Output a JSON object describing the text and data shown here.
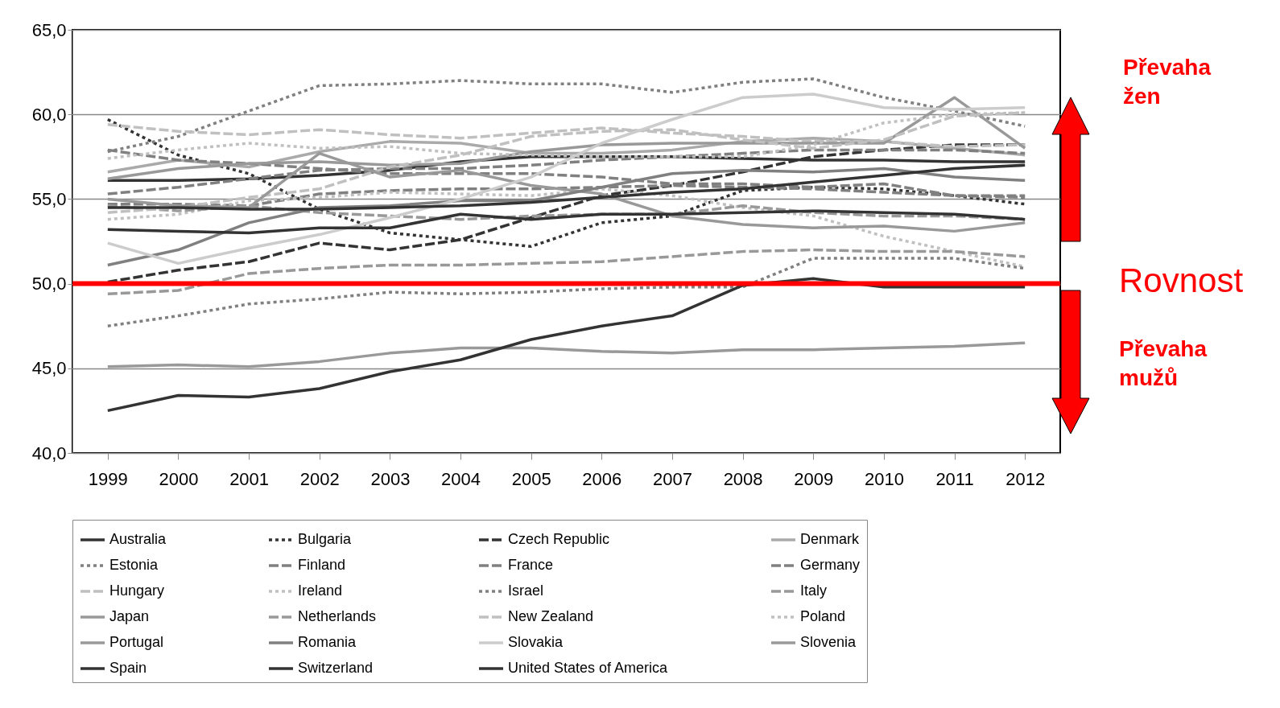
{
  "chart_data": {
    "type": "line",
    "categories": [
      "1999",
      "2000",
      "2001",
      "2002",
      "2003",
      "2004",
      "2005",
      "2006",
      "2007",
      "2008",
      "2009",
      "2010",
      "2011",
      "2012"
    ],
    "series": [
      {
        "name": "Australia",
        "color": "#333333",
        "line_style": "solid",
        "values": [
          56.1,
          56.1,
          56.2,
          56.4,
          56.7,
          57.2,
          57.5,
          57.5,
          57.5,
          57.4,
          57.3,
          57.3,
          57.2,
          57.2
        ]
      },
      {
        "name": "Bulgaria",
        "color": "#333333",
        "line_style": "dotted",
        "values": [
          59.7,
          57.6,
          56.5,
          54.4,
          53.0,
          52.6,
          52.2,
          53.6,
          54.0,
          55.5,
          55.7,
          55.6,
          55.2,
          54.7
        ]
      },
      {
        "name": "Czech Republic",
        "color": "#333333",
        "line_style": "dashed",
        "values": [
          50.1,
          50.8,
          51.3,
          52.4,
          52.0,
          52.6,
          53.9,
          55.2,
          55.8,
          56.6,
          57.5,
          57.9,
          58.2,
          58.2
        ]
      },
      {
        "name": "Denmark",
        "color": "#aaaaaa",
        "line_style": "solid",
        "values": [
          56.6,
          57.3,
          56.9,
          57.8,
          58.4,
          58.3,
          57.7,
          57.7,
          57.9,
          58.4,
          58.6,
          58.4,
          58.0,
          57.6
        ]
      },
      {
        "name": "Estonia",
        "color": "#808080",
        "line_style": "dotted",
        "values": [
          57.8,
          58.7,
          60.2,
          61.7,
          61.8,
          62.0,
          61.8,
          61.8,
          61.3,
          61.9,
          62.1,
          61.0,
          60.2,
          59.3
        ]
      },
      {
        "name": "Finland",
        "color": "#808080",
        "line_style": "dashed",
        "values": [
          55.3,
          55.7,
          56.2,
          56.7,
          56.8,
          56.8,
          57.0,
          57.3,
          57.5,
          57.7,
          57.9,
          57.9,
          57.9,
          57.7
        ]
      },
      {
        "name": "France",
        "color": "#808080",
        "line_style": "dashed",
        "values": [
          54.7,
          54.7,
          54.6,
          55.3,
          55.5,
          55.6,
          55.6,
          55.7,
          55.8,
          55.7,
          55.6,
          55.4,
          55.2,
          55.1
        ]
      },
      {
        "name": "Germany",
        "color": "#808080",
        "line_style": "dashed",
        "values": [
          57.9,
          57.3,
          57.1,
          56.8,
          56.5,
          56.5,
          56.5,
          56.3,
          55.9,
          55.9,
          55.7,
          55.9,
          55.2,
          55.2
        ]
      },
      {
        "name": "Hungary",
        "color": "#c0c0c0",
        "line_style": "dashed",
        "values": [
          59.4,
          59.0,
          58.8,
          59.1,
          58.8,
          58.6,
          58.9,
          59.2,
          58.9,
          58.7,
          58.4,
          58.4,
          58.1,
          58.2
        ]
      },
      {
        "name": "Ireland",
        "color": "#c0c0c0",
        "line_style": "dotted",
        "values": [
          53.8,
          54.1,
          54.9,
          55.1,
          55.4,
          55.3,
          55.2,
          55.6,
          55.2,
          54.5,
          54.0,
          52.8,
          51.9,
          51.0
        ]
      },
      {
        "name": "Israel",
        "color": "#808080",
        "line_style": "dotted",
        "values": [
          47.5,
          48.1,
          48.8,
          49.1,
          49.5,
          49.4,
          49.5,
          49.7,
          49.8,
          49.8,
          51.5,
          51.5,
          51.5,
          50.9
        ]
      },
      {
        "name": "Italy",
        "color": "#999999",
        "line_style": "dashed",
        "values": [
          54.6,
          54.3,
          54.6,
          54.2,
          54.0,
          53.8,
          54.0,
          54.1,
          54.1,
          54.6,
          54.2,
          54.0,
          54.0,
          53.8
        ]
      },
      {
        "name": "Japan",
        "color": "#999999",
        "line_style": "solid",
        "values": [
          56.2,
          56.8,
          57.1,
          57.2,
          57.0,
          57.1,
          57.8,
          58.2,
          58.3,
          58.3,
          58.3,
          58.3,
          61.0,
          58.0
        ]
      },
      {
        "name": "Netherlands",
        "color": "#999999",
        "line_style": "dashed",
        "values": [
          49.4,
          49.6,
          50.6,
          50.9,
          51.1,
          51.1,
          51.2,
          51.3,
          51.6,
          51.9,
          52.0,
          51.9,
          51.9,
          51.6
        ]
      },
      {
        "name": "New Zealand",
        "color": "#c0c0c0",
        "line_style": "dashed",
        "values": [
          54.2,
          54.5,
          55.1,
          55.6,
          56.9,
          57.6,
          58.7,
          59.0,
          59.1,
          58.5,
          58.0,
          58.5,
          59.9,
          60.1
        ]
      },
      {
        "name": "Poland",
        "color": "#c0c0c0",
        "line_style": "dotted",
        "values": [
          57.4,
          57.9,
          58.3,
          58.0,
          58.1,
          57.7,
          57.6,
          57.5,
          57.5,
          57.5,
          58.2,
          59.5,
          60.0,
          60.1
        ]
      },
      {
        "name": "Portugal",
        "color": "#999999",
        "line_style": "solid",
        "values": [
          55.0,
          54.6,
          54.5,
          57.7,
          56.3,
          56.7,
          55.8,
          55.3,
          54.0,
          53.5,
          53.3,
          53.4,
          53.1,
          53.6
        ]
      },
      {
        "name": "Romania",
        "color": "#808080",
        "line_style": "solid",
        "values": [
          51.1,
          52.0,
          53.6,
          54.5,
          54.6,
          54.9,
          54.9,
          55.7,
          56.5,
          56.7,
          56.6,
          56.8,
          56.3,
          56.1
        ]
      },
      {
        "name": "Slovakia",
        "color": "#cccccc",
        "line_style": "solid",
        "values": [
          52.4,
          51.2,
          52.1,
          52.9,
          53.9,
          55.0,
          56.3,
          58.3,
          59.7,
          61.0,
          61.2,
          60.4,
          60.3,
          60.4
        ]
      },
      {
        "name": "Slovenia",
        "color": "#999999",
        "line_style": "solid",
        "values": [
          45.1,
          45.2,
          45.1,
          45.4,
          45.9,
          46.2,
          46.2,
          46.0,
          45.9,
          46.1,
          46.1,
          46.2,
          46.3,
          46.5
        ]
      },
      {
        "name": "Spain",
        "color": "#333333",
        "line_style": "solid",
        "values": [
          42.5,
          43.4,
          43.3,
          43.8,
          44.8,
          45.5,
          46.7,
          47.5,
          48.1,
          49.9,
          50.3,
          49.8,
          49.8,
          49.8
        ]
      },
      {
        "name": "Switzerland",
        "color": "#333333",
        "line_style": "solid",
        "values": [
          53.2,
          53.1,
          53.0,
          53.3,
          53.3,
          54.1,
          53.8,
          54.1,
          54.1,
          54.2,
          54.3,
          54.2,
          54.1,
          53.8
        ]
      },
      {
        "name": "United States of America",
        "color": "#333333",
        "line_style": "solid",
        "values": [
          54.5,
          54.5,
          54.4,
          54.4,
          54.5,
          54.6,
          54.8,
          55.1,
          55.4,
          55.6,
          56.0,
          56.4,
          56.8,
          57.0
        ]
      }
    ],
    "ylim": [
      40,
      65
    ],
    "yticks": [
      {
        "value": 40,
        "label": "40,0"
      },
      {
        "value": 45,
        "label": "45,0"
      },
      {
        "value": 50,
        "label": "50,0"
      },
      {
        "value": 55,
        "label": "55,0"
      },
      {
        "value": 60,
        "label": "60,0"
      },
      {
        "value": 65,
        "label": "65,0"
      }
    ],
    "grid": "y",
    "legend": "bottom",
    "marker": "none",
    "ref_lines": [
      {
        "axis": "y",
        "value": 50,
        "label": "Rovnost",
        "color": "#ff0000"
      }
    ],
    "annotations": [
      "Převaha žen",
      "Převaha mužů"
    ]
  }
}
